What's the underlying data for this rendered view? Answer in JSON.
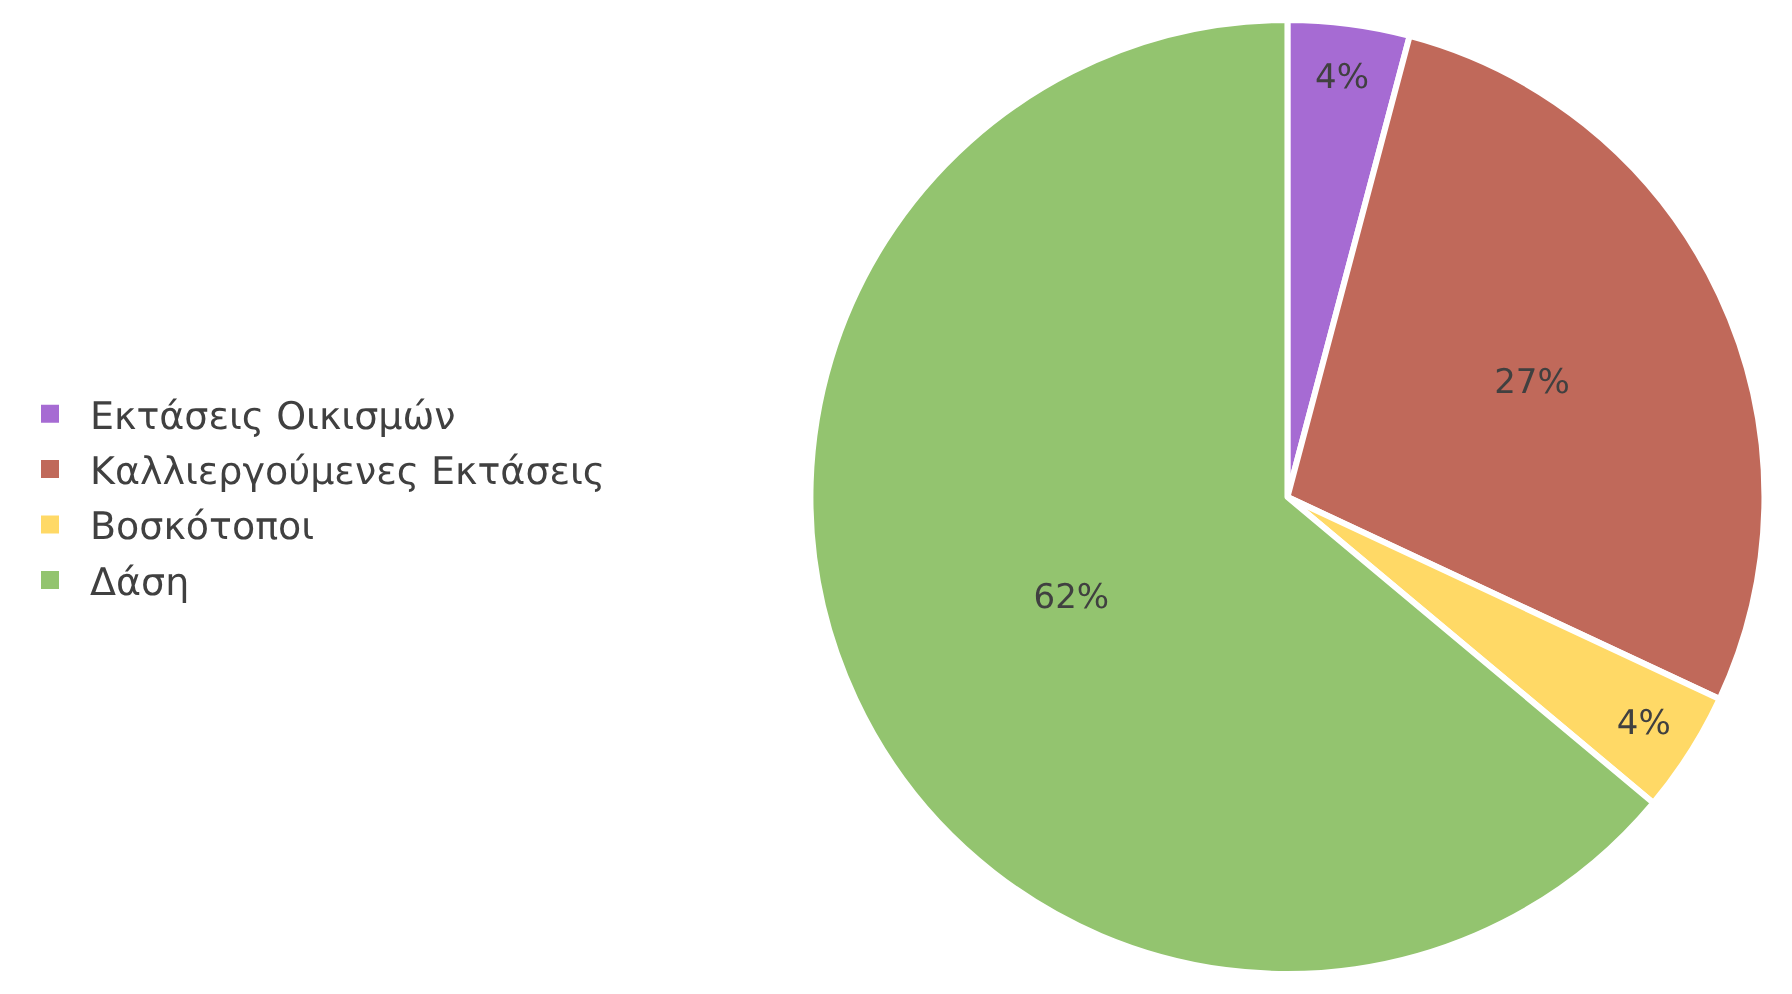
{
  "chart_data": {
    "type": "pie",
    "categories": [
      "Εκτάσεις Οικισμών",
      "Καλλιεργούμενες Εκτάσεις",
      "Βοσκότοποι",
      "Δάση"
    ],
    "values": [
      4,
      27,
      4,
      62
    ],
    "value_labels": [
      "4%",
      "27%",
      "4%",
      "62%"
    ],
    "colors": [
      "#a66bd3",
      "#c0695a",
      "#ffd966",
      "#93c46f"
    ],
    "legend": "left"
  }
}
